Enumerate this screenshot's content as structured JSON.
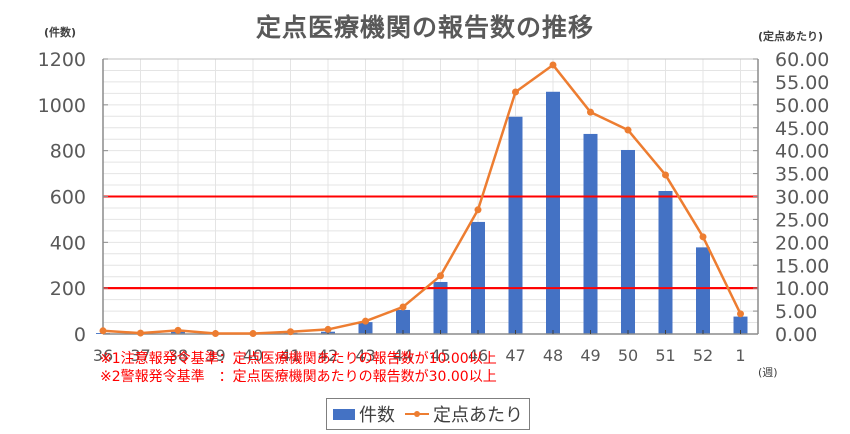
{
  "chart_data": {
    "type": "bar+line",
    "title": "定点医療機関の報告数の推移",
    "xlabel": "(週)",
    "ylabel": "(件数)",
    "ylabel_right": "(定点あたり)",
    "categories": [
      "36",
      "37",
      "38",
      "39",
      "40",
      "41",
      "42",
      "43",
      "44",
      "45",
      "46",
      "47",
      "48",
      "49",
      "50",
      "51",
      "52",
      "1"
    ],
    "series": [
      {
        "name": "件数",
        "type": "bar",
        "axis": "left",
        "color": "#4472c4",
        "values": [
          4,
          1,
          10,
          1,
          1,
          5,
          10,
          52,
          105,
          227,
          489,
          948,
          1057,
          873,
          803,
          624,
          378,
          76
        ]
      },
      {
        "name": "定点あたり",
        "type": "line",
        "axis": "right",
        "color": "#ed7d31",
        "values": [
          0.7,
          0.2,
          0.8,
          0.1,
          0.1,
          0.5,
          1.0,
          2.8,
          5.9,
          12.7,
          27.1,
          52.8,
          58.7,
          48.4,
          44.5,
          34.7,
          21.2,
          4.4
        ]
      }
    ],
    "ylim": [
      0,
      1200
    ],
    "ylim_right": [
      0,
      60
    ],
    "yticks": [
      "0",
      "200",
      "400",
      "600",
      "800",
      "1000",
      "1200"
    ],
    "yticks_right": [
      "0.00",
      "5.00",
      "10.00",
      "15.00",
      "20.00",
      "25.00",
      "30.00",
      "35.00",
      "40.00",
      "45.00",
      "50.00",
      "55.00",
      "60.00"
    ],
    "reference_lines": [
      {
        "axis": "right",
        "value": 10,
        "color": "#ff0000",
        "label": "注意報発令基準"
      },
      {
        "axis": "right",
        "value": 30,
        "color": "#ff0000",
        "label": "警報発令基準"
      }
    ],
    "grid": true,
    "legend_position": "bottom"
  },
  "notes": [
    "※1注意報発令基準：定点医療機関あたりの報告数が10.00以上",
    "※2警報発令基準　：定点医療機関あたりの報告数が30.00以上"
  ],
  "legend": {
    "bar_label": "件数",
    "line_label": "定点あたり"
  }
}
